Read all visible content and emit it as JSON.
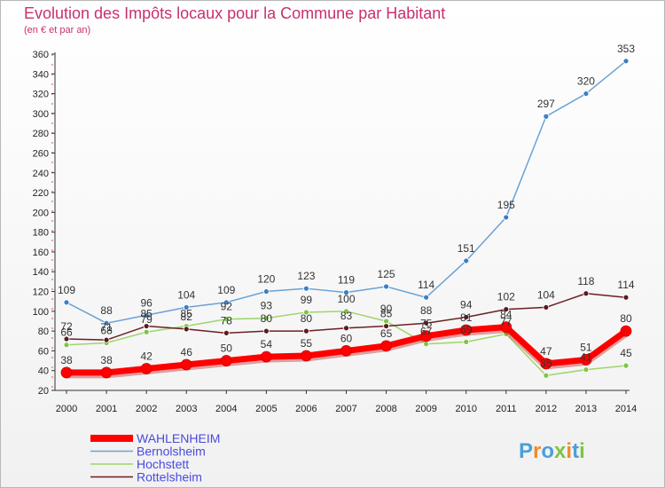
{
  "chart_data": {
    "type": "line",
    "title": "Evolution des Impôts locaux pour la Commune par Habitant",
    "subtitle": "(en € et par an)",
    "xlabel": "",
    "ylabel": "",
    "x": [
      "2000",
      "2001",
      "2002",
      "2003",
      "2004",
      "2005",
      "2006",
      "2007",
      "2008",
      "2009",
      "2010",
      "2011",
      "2012",
      "2013",
      "2014"
    ],
    "ylim": [
      20,
      360
    ],
    "yticks": [
      20,
      40,
      60,
      80,
      100,
      120,
      140,
      160,
      180,
      200,
      220,
      240,
      260,
      280,
      300,
      320,
      340,
      360
    ],
    "grid": false,
    "legend_position": "bottom-left",
    "series": [
      {
        "name": "Bernolsheim",
        "color": "#6aa2d6",
        "marker": "#3a7fc4",
        "width": 1.5,
        "labels": true,
        "values": [
          109,
          88,
          96,
          104,
          109,
          120,
          123,
          119,
          125,
          114,
          151,
          195,
          297,
          320,
          353
        ]
      },
      {
        "name": "Hochstett",
        "color": "#9ed56a",
        "marker": "#7cc544",
        "width": 1.5,
        "labels": true,
        "values": [
          66,
          68,
          79,
          85,
          92,
          93,
          99,
          100,
          90,
          67,
          69,
          77,
          35,
          41,
          45
        ]
      },
      {
        "name": "Rottelsheim",
        "color": "#6b1f24",
        "marker": "#5a1a1e",
        "width": 1.5,
        "labels": true,
        "values": [
          72,
          71,
          85,
          82,
          78,
          80,
          80,
          83,
          85,
          88,
          94,
          102,
          104,
          118,
          114
        ]
      },
      {
        "name": "WAHLENHEIM",
        "color": "#ff0000",
        "marker": "#ff0000",
        "width": 7,
        "labels": true,
        "values": [
          38,
          38,
          42,
          46,
          50,
          54,
          55,
          60,
          65,
          75,
          81,
          84,
          47,
          51,
          80
        ]
      }
    ],
    "legend_order": [
      "WAHLENHEIM",
      "Bernolsheim",
      "Hochstett",
      "Rottelsheim"
    ]
  },
  "logo": {
    "text": "Proxiti"
  }
}
